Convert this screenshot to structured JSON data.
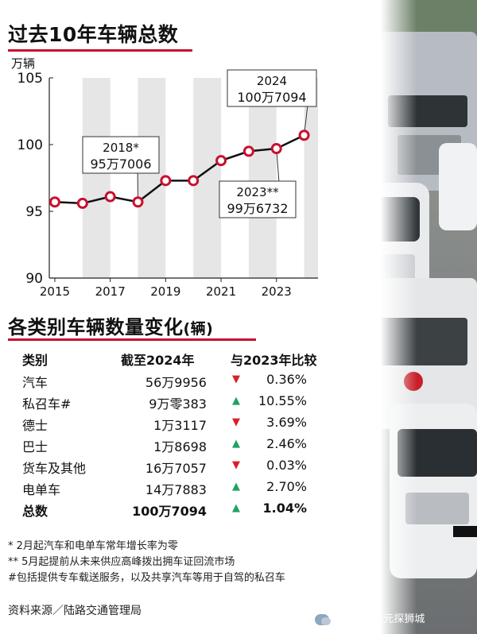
{
  "chart": {
    "title": "过去10年车辆总数",
    "unit": "万辆"
  },
  "chart_data": {
    "type": "line",
    "x": [
      2015,
      2016,
      2017,
      2018,
      2019,
      2020,
      2021,
      2022,
      2023,
      2024
    ],
    "values": [
      95.7,
      95.6,
      96.1,
      95.7,
      97.3,
      97.3,
      98.8,
      99.5,
      99.7,
      100.7
    ],
    "xticks": [
      "2015",
      "2017",
      "2019",
      "2021",
      "2023"
    ],
    "yticks": [
      "90",
      "95",
      "100",
      "105"
    ],
    "ylim": [
      90,
      105
    ],
    "xlim": [
      2014.8,
      2024.5
    ],
    "grid": "vertical bands",
    "line_color": "#111111",
    "marker_color": "#c8102e",
    "annotations": [
      {
        "year": "2018*",
        "value": "95万7006",
        "x": 2018,
        "y": 95.7
      },
      {
        "year": "2023**",
        "value": "99万6732",
        "x": 2023,
        "y": 99.7
      },
      {
        "year": "2024",
        "value": "100万7094",
        "x": 2024,
        "y": 100.7
      }
    ]
  },
  "table": {
    "title": "各类别车辆数量变化",
    "title_suffix": "(辆)",
    "headers": [
      "类别",
      "截至2024年",
      "与2023年比较"
    ],
    "rows": [
      {
        "category": "汽车",
        "value": "56万9956",
        "dir": "down",
        "arrow": "▼",
        "change": "0.36%"
      },
      {
        "category": "私召车#",
        "value": "9万零383",
        "dir": "up",
        "arrow": "▲",
        "change": "10.55%"
      },
      {
        "category": "德士",
        "value": "1万3117",
        "dir": "down",
        "arrow": "▼",
        "change": "3.69%"
      },
      {
        "category": "巴士",
        "value": "1万8698",
        "dir": "up",
        "arrow": "▲",
        "change": "2.46%"
      },
      {
        "category": "货车及其他",
        "value": "16万7057",
        "dir": "down",
        "arrow": "▼",
        "change": "0.03%"
      },
      {
        "category": "电单车",
        "value": "14万7883",
        "dir": "up",
        "arrow": "▲",
        "change": "2.70%"
      }
    ],
    "total": {
      "category": "总数",
      "value": "100万7094",
      "dir": "up",
      "arrow": "▲",
      "change": "1.04%"
    }
  },
  "notes": [
    "* 2月起汽车和电单车常年增长率为零",
    "** 5月起提前从未来供应高峰拨出拥车证回流市场",
    "#包括提供专车载送服务，以及共享汽车等用于自驾的私召车"
  ],
  "source": "资料来源／陆路交通管理局",
  "watermark": "公众号 · 小元探狮城",
  "colors": {
    "accent": "#c8102e",
    "up": "#1ea360",
    "down": "#d8202b"
  }
}
